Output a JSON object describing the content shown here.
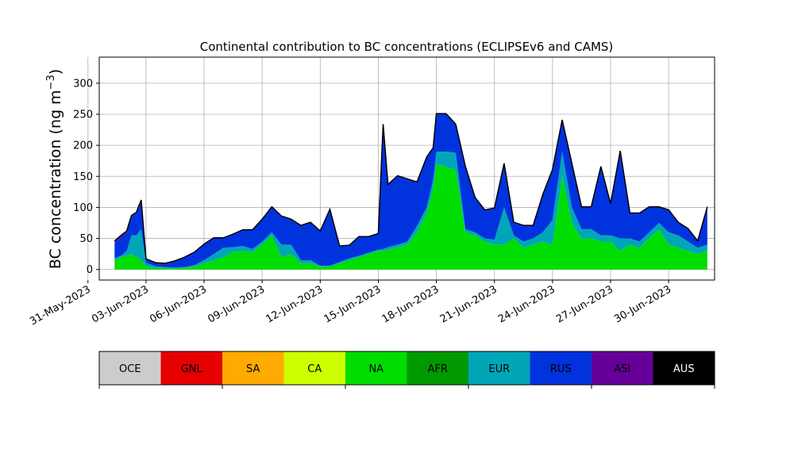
{
  "chart_data": {
    "type": "area",
    "title": "Continental contribution to BC concentrations (ECLIPSEv6 and CAMS)",
    "ylabel": "BC concentration (ng m",
    "ylabel_sup": "−3",
    "ylabel_end": ")",
    "ylim": [
      -17,
      342
    ],
    "yticks": [
      0,
      50,
      100,
      150,
      200,
      250,
      300
    ],
    "xlim": [
      "2023-05-31T14:00",
      "2023-07-02T09:00"
    ],
    "xticks": [
      {
        "date": "2023-05-31",
        "label": "31-May-2023"
      },
      {
        "date": "2023-06-03",
        "label": "03-Jun-2023"
      },
      {
        "date": "2023-06-06",
        "label": "06-Jun-2023"
      },
      {
        "date": "2023-06-09",
        "label": "09-Jun-2023"
      },
      {
        "date": "2023-06-12",
        "label": "12-Jun-2023"
      },
      {
        "date": "2023-06-15",
        "label": "15-Jun-2023"
      },
      {
        "date": "2023-06-18",
        "label": "18-Jun-2023"
      },
      {
        "date": "2023-06-21",
        "label": "21-Jun-2023"
      },
      {
        "date": "2023-06-24",
        "label": "24-Jun-2023"
      },
      {
        "date": "2023-06-27",
        "label": "27-Jun-2023"
      },
      {
        "date": "2023-06-30",
        "label": "30-Jun-2023"
      }
    ],
    "grid": true,
    "x": [
      "2023-06-01T09:00",
      "2023-06-01T18:00",
      "2023-06-02T00:00",
      "2023-06-02T06:00",
      "2023-06-02T12:00",
      "2023-06-02T18:00",
      "2023-06-03T00:00",
      "2023-06-03T12:00",
      "2023-06-04T00:00",
      "2023-06-04T12:00",
      "2023-06-05T00:00",
      "2023-06-05T12:00",
      "2023-06-06T00:00",
      "2023-06-06T12:00",
      "2023-06-07T00:00",
      "2023-06-07T12:00",
      "2023-06-08T00:00",
      "2023-06-08T12:00",
      "2023-06-09T00:00",
      "2023-06-09T12:00",
      "2023-06-10T00:00",
      "2023-06-10T12:00",
      "2023-06-11T00:00",
      "2023-06-11T12:00",
      "2023-06-12T00:00",
      "2023-06-12T12:00",
      "2023-06-13T00:00",
      "2023-06-13T12:00",
      "2023-06-14T00:00",
      "2023-06-14T12:00",
      "2023-06-15T00:00",
      "2023-06-15T06:00",
      "2023-06-15T12:00",
      "2023-06-16T00:00",
      "2023-06-16T12:00",
      "2023-06-17T00:00",
      "2023-06-17T12:00",
      "2023-06-17T20:00",
      "2023-06-18T00:00",
      "2023-06-18T12:00",
      "2023-06-19T00:00",
      "2023-06-19T12:00",
      "2023-06-20T00:00",
      "2023-06-20T12:00",
      "2023-06-21T00:00",
      "2023-06-21T12:00",
      "2023-06-22T00:00",
      "2023-06-22T12:00",
      "2023-06-23T00:00",
      "2023-06-23T12:00",
      "2023-06-24T00:00",
      "2023-06-24T12:00",
      "2023-06-25T00:00",
      "2023-06-25T12:00",
      "2023-06-26T00:00",
      "2023-06-26T12:00",
      "2023-06-27T00:00",
      "2023-06-27T12:00",
      "2023-06-28T00:00",
      "2023-06-28T12:00",
      "2023-06-29T00:00",
      "2023-06-29T12:00",
      "2023-06-30T00:00",
      "2023-06-30T12:00",
      "2023-07-01T00:00",
      "2023-07-01T12:00",
      "2023-07-02T00:00"
    ],
    "series": [
      {
        "name": "NA",
        "color": "#00dd00",
        "values": [
          15,
          20,
          22,
          25,
          20,
          15,
          5,
          3,
          2,
          2,
          3,
          5,
          10,
          15,
          20,
          28,
          30,
          28,
          40,
          55,
          20,
          25,
          10,
          10,
          5,
          5,
          10,
          15,
          20,
          25,
          30,
          30,
          32,
          35,
          40,
          60,
          90,
          130,
          170,
          165,
          160,
          60,
          55,
          45,
          40,
          40,
          50,
          35,
          40,
          45,
          40,
          150,
          75,
          50,
          50,
          45,
          45,
          30,
          40,
          35,
          50,
          65,
          40,
          35,
          30,
          25,
          30
        ]
      },
      {
        "name": "EUR",
        "color": "#00a6b8",
        "values": [
          3,
          3,
          8,
          30,
          35,
          50,
          6,
          2,
          2,
          1,
          1,
          2,
          5,
          10,
          15,
          8,
          8,
          5,
          5,
          5,
          20,
          15,
          5,
          5,
          1,
          1,
          2,
          3,
          2,
          2,
          2,
          3,
          4,
          5,
          5,
          10,
          10,
          15,
          20,
          25,
          28,
          5,
          5,
          5,
          8,
          60,
          5,
          10,
          10,
          15,
          40,
          40,
          25,
          15,
          15,
          10,
          10,
          20,
          10,
          10,
          10,
          10,
          20,
          20,
          15,
          10,
          10
        ]
      },
      {
        "name": "RUS",
        "color": "#0033dd",
        "values": [
          25,
          30,
          30,
          30,
          35,
          45,
          5,
          5,
          5,
          10,
          15,
          20,
          25,
          25,
          15,
          20,
          25,
          30,
          35,
          40,
          45,
          40,
          55,
          60,
          55,
          90,
          25,
          20,
          30,
          25,
          25,
          200,
          100,
          110,
          100,
          70,
          80,
          50,
          60,
          60,
          45,
          100,
          55,
          45,
          50,
          70,
          20,
          25,
          20,
          60,
          80,
          50,
          70,
          35,
          35,
          110,
          50,
          140,
          40,
          45,
          40,
          25,
          35,
          20,
          20,
          10,
          60
        ]
      },
      {
        "name": "ASI",
        "color": "#660099",
        "values": [
          3,
          3,
          2,
          2,
          2,
          2,
          1,
          1,
          1,
          1,
          1,
          1,
          1,
          1,
          1,
          1,
          1,
          1,
          1,
          1,
          1,
          1,
          1,
          1,
          1,
          1,
          1,
          1,
          1,
          1,
          1,
          1,
          1,
          1,
          1,
          1,
          1,
          1,
          1,
          1,
          1,
          1,
          1,
          1,
          1,
          1,
          1,
          1,
          1,
          1,
          1,
          1,
          1,
          1,
          1,
          1,
          1,
          1,
          1,
          1,
          1,
          1,
          1,
          1,
          1,
          1,
          1
        ]
      },
      {
        "name": "AUS",
        "color": "#000000",
        "values": [
          0,
          0,
          0,
          0,
          0,
          0,
          0,
          0,
          0,
          0,
          0,
          0,
          0,
          0,
          0,
          0,
          0,
          0,
          0,
          0,
          0,
          0,
          0,
          0,
          0,
          0,
          0,
          0,
          0,
          0,
          0,
          0,
          0,
          0,
          0,
          0,
          0,
          0,
          0,
          0,
          0,
          0,
          0,
          0,
          0,
          0,
          0,
          0,
          0,
          0,
          0,
          0,
          0,
          0,
          0,
          0,
          0,
          0,
          0,
          0,
          0,
          0,
          0,
          0,
          0,
          0,
          0
        ]
      }
    ],
    "colorbar": [
      {
        "label": "OCE",
        "color": "#cccccc",
        "text_color": "#000000"
      },
      {
        "label": "GNL",
        "color": "#e60000",
        "text_color": "#000000"
      },
      {
        "label": "SA",
        "color": "#ffaa00",
        "text_color": "#000000"
      },
      {
        "label": "CA",
        "color": "#ccff00",
        "text_color": "#000000"
      },
      {
        "label": "NA",
        "color": "#00dd00",
        "text_color": "#000000"
      },
      {
        "label": "AFR",
        "color": "#009900",
        "text_color": "#000000"
      },
      {
        "label": "EUR",
        "color": "#00a6b8",
        "text_color": "#000000"
      },
      {
        "label": "RUS",
        "color": "#0033dd",
        "text_color": "#000000"
      },
      {
        "label": "ASI",
        "color": "#660099",
        "text_color": "#000000"
      },
      {
        "label": "AUS",
        "color": "#000000",
        "text_color": "#ffffff"
      }
    ]
  }
}
